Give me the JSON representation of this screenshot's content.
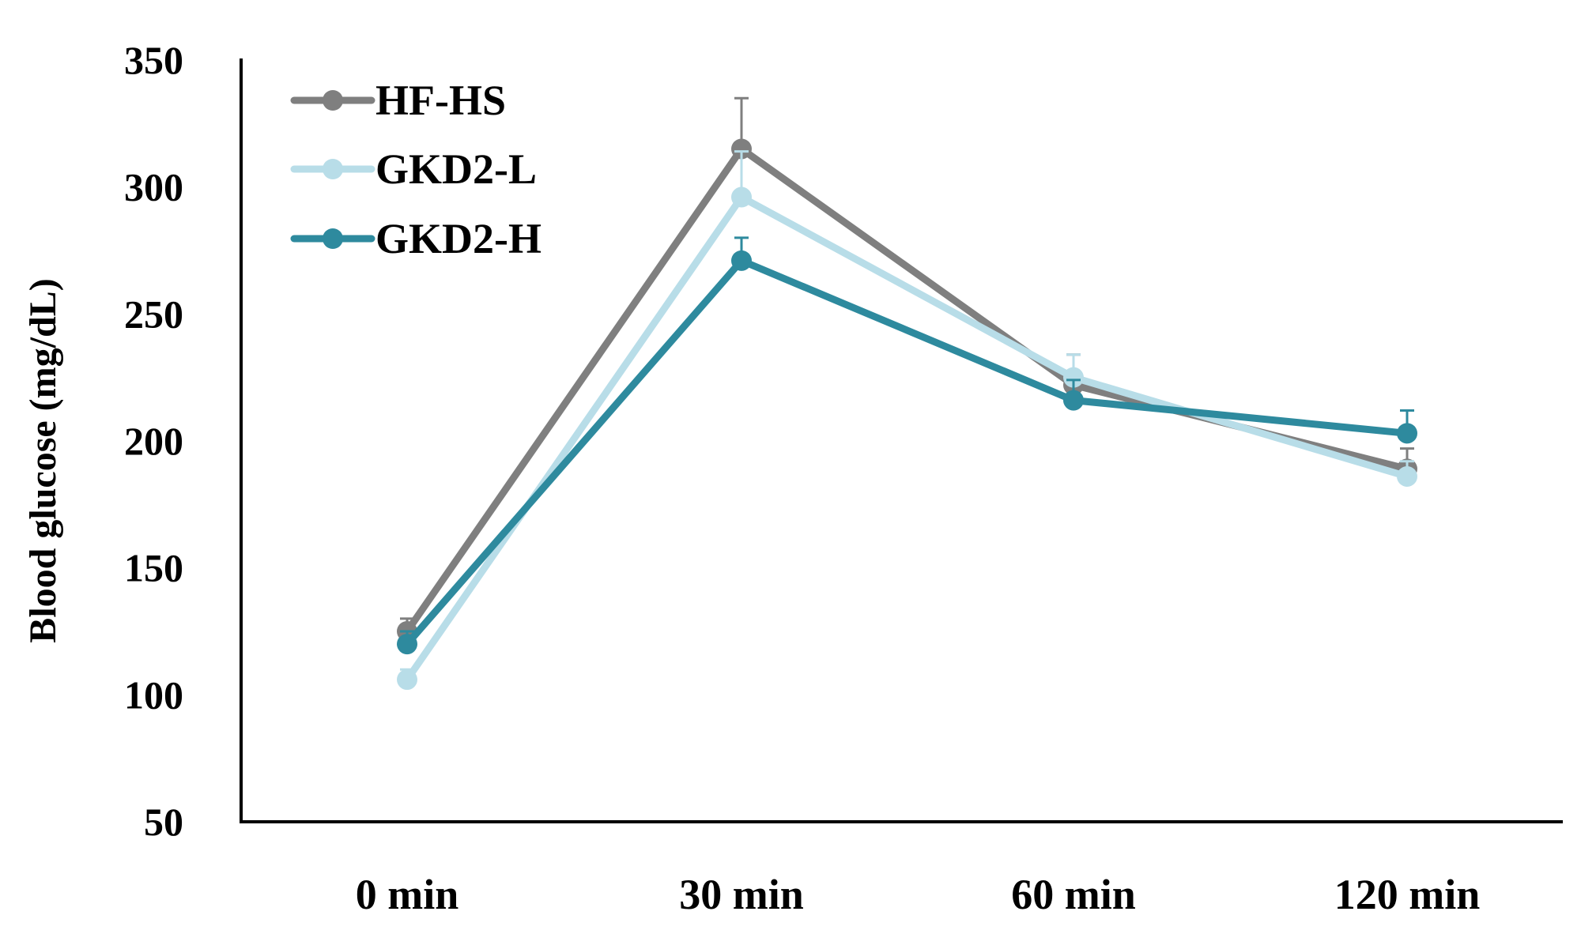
{
  "chart_data": {
    "type": "line",
    "title": "",
    "xlabel": "",
    "ylabel": "Blood glucose (mg/dL)",
    "categories": [
      "0 min",
      "30 min",
      "60 min",
      "120 min"
    ],
    "ylim": [
      50,
      350
    ],
    "yticks": [
      50,
      100,
      150,
      200,
      250,
      300,
      350
    ],
    "grid": false,
    "legend_position": "top-left",
    "series": [
      {
        "name": "HF-HS",
        "color": "#7f7f7f",
        "values": [
          125,
          315,
          222,
          189
        ],
        "errors": [
          5,
          20,
          12,
          8
        ]
      },
      {
        "name": "GKD2-L",
        "color": "#b8dde8",
        "values": [
          106,
          296,
          225,
          186
        ],
        "errors": [
          4,
          18,
          9,
          6
        ]
      },
      {
        "name": "GKD2-H",
        "color": "#2e8a9e",
        "values": [
          120,
          271,
          216,
          203
        ],
        "errors": [
          5,
          9,
          8,
          9
        ]
      }
    ]
  }
}
